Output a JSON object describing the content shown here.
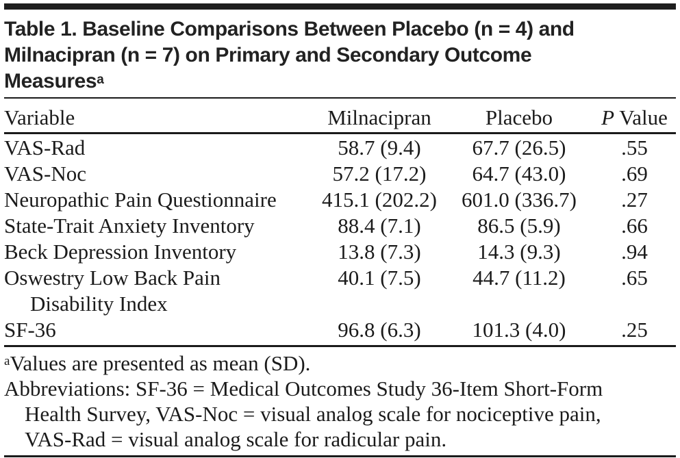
{
  "title": {
    "lines": [
      "Table 1. Baseline Comparisons Between Placebo (n = 4) and",
      "Milnacipran (n = 7) on Primary and Secondary Outcome",
      "Measures"
    ],
    "superscript": "a"
  },
  "table": {
    "headers": {
      "variable": "Variable",
      "milnacipran": "Milnacipran",
      "placebo": "Placebo",
      "p_italic": "P",
      "p_rest": "Value"
    },
    "rows": [
      {
        "variable": "VAS-Rad",
        "milnacipran": "58.7 (9.4)",
        "placebo": "67.7 (26.5)",
        "p_value": ".55"
      },
      {
        "variable": "VAS-Noc",
        "milnacipran": "57.2 (17.2)",
        "placebo": "64.7 (43.0)",
        "p_value": ".69"
      },
      {
        "variable": "Neuropathic Pain Questionnaire",
        "milnacipran": "415.1 (202.2)",
        "placebo": "601.0 (336.7)",
        "p_value": ".27"
      },
      {
        "variable": "State-Trait Anxiety Inventory",
        "milnacipran": "88.4 (7.1)",
        "placebo": "86.5 (5.9)",
        "p_value": ".66"
      },
      {
        "variable": "Beck Depression Inventory",
        "milnacipran": "13.8 (7.3)",
        "placebo": "14.3 (9.3)",
        "p_value": ".94"
      },
      {
        "variable": "Oswestry Low Back Pain",
        "variable_line2": "Disability Index",
        "milnacipran": "40.1 (7.5)",
        "placebo": "44.7 (11.2)",
        "p_value": ".65"
      },
      {
        "variable": "SF-36",
        "milnacipran": "96.8 (6.3)",
        "placebo": "101.3 (4.0)",
        "p_value": ".25"
      }
    ]
  },
  "footnotes": {
    "superscript": "a",
    "values_note": "Values are presented as mean (SD).",
    "abbreviations_lines": [
      "Abbreviations: SF-36 = Medical Outcomes Study 36-Item Short-Form",
      "Health Survey, VAS-Noc = visual analog scale for nociceptive pain,",
      "VAS-Rad = visual analog scale for radicular pain."
    ]
  },
  "colors": {
    "text": "#1b1b1b",
    "rule": "#1a1a1a",
    "top_bar": "#1f1f1f",
    "background": "#ffffff"
  }
}
